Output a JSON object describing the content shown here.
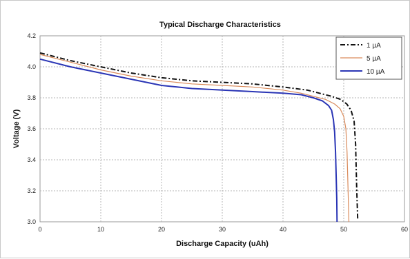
{
  "chart_data": {
    "type": "line",
    "title": "Typical Discharge Characteristics",
    "xlabel": "Discharge Capacity (uAh)",
    "ylabel": "Voltage (V)",
    "xlim": [
      0,
      60
    ],
    "ylim": [
      3.0,
      4.2
    ],
    "x_ticks": [
      "0",
      "10",
      "20",
      "30",
      "40",
      "50",
      "60"
    ],
    "y_ticks": [
      "3.0",
      "3.2",
      "3.4",
      "3.6",
      "3.8",
      "4.0",
      "4.2"
    ],
    "grid": true,
    "legend_position": "top-right",
    "series": [
      {
        "name": "1 µA",
        "color": "#111111",
        "style": "dash-dot",
        "x": [
          0,
          5,
          10,
          15,
          20,
          25,
          30,
          35,
          40,
          44,
          46,
          48,
          49.5,
          50.5,
          51.2,
          51.7,
          51.95,
          52.05,
          52.15,
          52.3
        ],
        "y": [
          4.09,
          4.04,
          4.0,
          3.96,
          3.93,
          3.91,
          3.9,
          3.89,
          3.87,
          3.85,
          3.83,
          3.81,
          3.79,
          3.76,
          3.72,
          3.65,
          3.5,
          3.35,
          3.2,
          3.02
        ]
      },
      {
        "name": "5 µA",
        "color": "#d98a5a",
        "style": "solid",
        "x": [
          0,
          5,
          10,
          15,
          20,
          25,
          30,
          35,
          40,
          43,
          45,
          47,
          48.5,
          49.4,
          50.0,
          50.35,
          50.55,
          50.65,
          50.75,
          50.85
        ],
        "y": [
          4.08,
          4.03,
          3.98,
          3.94,
          3.91,
          3.89,
          3.88,
          3.87,
          3.85,
          3.83,
          3.81,
          3.79,
          3.76,
          3.73,
          3.68,
          3.6,
          3.45,
          3.3,
          3.15,
          3.0
        ]
      },
      {
        "name": "10 µA",
        "color": "#2a35b5",
        "style": "solid",
        "x": [
          0,
          5,
          10,
          15,
          20,
          25,
          30,
          35,
          40,
          43,
          45,
          46.5,
          47.5,
          48.0,
          48.3,
          48.5,
          48.65,
          48.75,
          48.85,
          48.9
        ],
        "y": [
          4.05,
          4.0,
          3.96,
          3.92,
          3.88,
          3.86,
          3.85,
          3.84,
          3.83,
          3.82,
          3.8,
          3.78,
          3.75,
          3.72,
          3.66,
          3.58,
          3.45,
          3.3,
          3.15,
          3.0
        ]
      }
    ]
  }
}
